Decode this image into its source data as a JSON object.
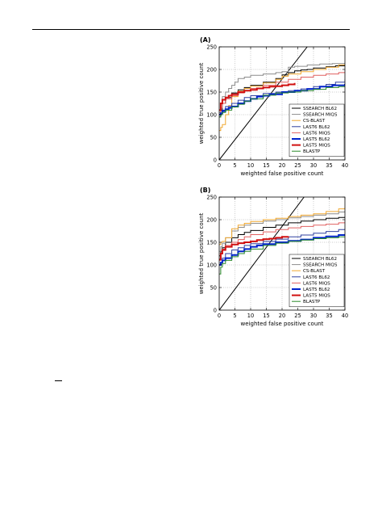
{
  "page": {
    "footnote_mark": "—"
  },
  "chart_data": [
    {
      "type": "line",
      "panel_label": "(A)",
      "xlabel": "weighted false positive count",
      "ylabel": "weighted true positive count",
      "xlim": [
        0,
        40
      ],
      "ylim": [
        0,
        250
      ],
      "xticks": [
        0,
        5,
        10,
        15,
        20,
        25,
        30,
        35,
        40
      ],
      "yticks": [
        0,
        50,
        100,
        150,
        200,
        250
      ],
      "grid": true,
      "legend_position": "lower-right",
      "reference_line": {
        "x": [
          0,
          28
        ],
        "y": [
          0,
          250
        ],
        "color": "#000000"
      },
      "series": [
        {
          "name": "SSEARCH BL62",
          "color": "#000000",
          "width": 1.0,
          "x": [
            0,
            0.5,
            1,
            2,
            4,
            6,
            8,
            10,
            14,
            18,
            20,
            22,
            24,
            26,
            28,
            30,
            34,
            37,
            40
          ],
          "y": [
            95,
            110,
            125,
            138,
            148,
            155,
            160,
            165,
            172,
            180,
            188,
            193,
            197,
            199,
            200,
            203,
            206,
            208,
            210
          ]
        },
        {
          "name": "SSEARCH MIQS",
          "color": "#8c8c8c",
          "width": 1.0,
          "x": [
            0,
            0.5,
            1,
            2,
            3,
            4,
            5,
            6,
            8,
            10,
            14,
            18,
            20,
            22,
            24,
            28,
            32,
            36,
            40
          ],
          "y": [
            105,
            125,
            140,
            150,
            158,
            165,
            172,
            180,
            183,
            187,
            190,
            193,
            195,
            205,
            207,
            210,
            212,
            213,
            215
          ]
        },
        {
          "name": "CS-BLAST",
          "color": "#f0a830",
          "width": 1.0,
          "x": [
            0,
            0.5,
            1,
            2,
            3,
            4,
            6,
            8,
            10,
            14,
            18,
            20,
            22,
            26,
            30,
            34,
            38,
            40
          ],
          "y": [
            65,
            72,
            78,
            100,
            120,
            140,
            152,
            158,
            163,
            170,
            178,
            185,
            190,
            195,
            200,
            205,
            210,
            212
          ]
        },
        {
          "name": "LAST6 BL62",
          "color": "#3040a0",
          "width": 1.0,
          "x": [
            0,
            1,
            2,
            4,
            6,
            8,
            10,
            14,
            18,
            22,
            26,
            30,
            34,
            37,
            40
          ],
          "y": [
            100,
            110,
            118,
            125,
            132,
            138,
            142,
            147,
            150,
            153,
            157,
            162,
            167,
            172,
            178
          ]
        },
        {
          "name": "LAST6 MIQS",
          "color": "#e06060",
          "width": 1.0,
          "x": [
            0,
            0.5,
            1,
            2,
            4,
            6,
            8,
            10,
            14,
            18,
            22,
            26,
            30,
            34,
            38,
            40
          ],
          "y": [
            100,
            115,
            125,
            135,
            142,
            148,
            153,
            158,
            165,
            172,
            178,
            183,
            187,
            190,
            193,
            195
          ]
        },
        {
          "name": "LAST5 BL62",
          "color": "#0022cc",
          "width": 2.0,
          "x": [
            0,
            0.5,
            1,
            2,
            3,
            4,
            6,
            8,
            10,
            12,
            14,
            16,
            20,
            24,
            28,
            32,
            36,
            40
          ],
          "y": [
            100,
            103,
            108,
            112,
            115,
            118,
            125,
            130,
            135,
            140,
            142,
            145,
            150,
            153,
            157,
            162,
            165,
            168
          ]
        },
        {
          "name": "LAST5 MIQS",
          "color": "#d01010",
          "width": 2.0,
          "x": [
            0,
            0.5,
            1,
            2,
            3,
            4,
            6,
            8,
            10,
            12,
            14,
            16,
            18,
            20,
            22,
            24
          ],
          "y": [
            110,
            125,
            133,
            138,
            142,
            145,
            150,
            153,
            155,
            158,
            160,
            162,
            163,
            165,
            167,
            170
          ]
        },
        {
          "name": "BLASTP",
          "color": "#2a8a2a",
          "width": 1.0,
          "x": [
            0,
            0.5,
            1,
            2,
            4,
            6,
            8,
            10,
            14,
            18,
            22,
            26,
            30,
            34,
            38,
            40
          ],
          "y": [
            95,
            100,
            105,
            110,
            117,
            123,
            130,
            135,
            143,
            148,
            150,
            153,
            156,
            160,
            162,
            165
          ]
        }
      ]
    },
    {
      "type": "line",
      "panel_label": "(B)",
      "xlabel": "weighted false positive count",
      "ylabel": "weighted true positive count",
      "xlim": [
        0,
        40
      ],
      "ylim": [
        0,
        250
      ],
      "xticks": [
        0,
        5,
        10,
        15,
        20,
        25,
        30,
        35,
        40
      ],
      "yticks": [
        0,
        50,
        100,
        150,
        200,
        250
      ],
      "grid": true,
      "reference_line": {
        "x": [
          0,
          27
        ],
        "y": [
          0,
          250
        ],
        "color": "#000000"
      },
      "series": [
        {
          "name": "SSEARCH BL62",
          "color": "#000000",
          "width": 1.0,
          "x": [
            0,
            0.5,
            1,
            2,
            4,
            6,
            8,
            10,
            14,
            18,
            22,
            26,
            30,
            34,
            38,
            40
          ],
          "y": [
            120,
            130,
            138,
            150,
            160,
            167,
            172,
            176,
            183,
            188,
            193,
            197,
            200,
            203,
            205,
            207
          ]
        },
        {
          "name": "SSEARCH MIQS",
          "color": "#8c8c8c",
          "width": 1.0,
          "x": [
            0,
            0.5,
            1,
            2,
            4,
            6,
            8,
            10,
            14,
            18,
            22,
            26,
            30,
            34,
            38,
            40
          ],
          "y": [
            130,
            140,
            148,
            160,
            175,
            183,
            188,
            192,
            197,
            200,
            204,
            207,
            210,
            213,
            217,
            220
          ]
        },
        {
          "name": "CS-BLAST",
          "color": "#f0a830",
          "width": 1.0,
          "x": [
            0,
            0.5,
            1,
            2,
            4,
            6,
            8,
            10,
            14,
            18,
            22,
            26,
            30,
            34,
            38,
            40
          ],
          "y": [
            145,
            150,
            152,
            160,
            180,
            188,
            192,
            196,
            200,
            203,
            207,
            210,
            213,
            218,
            224,
            228
          ]
        },
        {
          "name": "LAST6 BL62",
          "color": "#3040a0",
          "width": 1.0,
          "x": [
            0,
            1,
            2,
            4,
            6,
            8,
            10,
            14,
            18,
            22,
            26,
            30,
            34,
            38,
            40
          ],
          "y": [
            100,
            115,
            125,
            133,
            138,
            143,
            147,
            152,
            157,
            162,
            166,
            170,
            174,
            178,
            180
          ]
        },
        {
          "name": "LAST6 MIQS",
          "color": "#e06060",
          "width": 1.0,
          "x": [
            0,
            0.5,
            1,
            2,
            4,
            6,
            8,
            10,
            14,
            18,
            22,
            26,
            30,
            34,
            38,
            40
          ],
          "y": [
            110,
            125,
            135,
            143,
            150,
            156,
            162,
            167,
            173,
            178,
            182,
            185,
            188,
            190,
            193,
            195
          ]
        },
        {
          "name": "LAST5 BL62",
          "color": "#0022cc",
          "width": 2.0,
          "x": [
            0,
            0.5,
            1,
            2,
            4,
            6,
            8,
            10,
            12,
            14,
            18,
            22,
            26,
            30,
            34,
            38,
            40
          ],
          "y": [
            100,
            105,
            110,
            115,
            122,
            130,
            135,
            140,
            143,
            146,
            150,
            153,
            156,
            160,
            163,
            166,
            168
          ]
        },
        {
          "name": "LAST5 MIQS",
          "color": "#d01010",
          "width": 2.0,
          "x": [
            0,
            0.5,
            1,
            2,
            4,
            6,
            8,
            10,
            12,
            14,
            16,
            18,
            20,
            22
          ],
          "y": [
            112,
            125,
            133,
            140,
            145,
            148,
            150,
            152,
            155,
            157,
            158,
            160,
            162,
            163
          ]
        },
        {
          "name": "BLASTP",
          "color": "#2a8a2a",
          "width": 1.0,
          "x": [
            0,
            0.5,
            1,
            2,
            4,
            6,
            8,
            10,
            14,
            18,
            22,
            26,
            30,
            34,
            38,
            40
          ],
          "y": [
            80,
            95,
            103,
            110,
            118,
            125,
            130,
            135,
            143,
            148,
            152,
            155,
            158,
            160,
            162,
            163
          ]
        }
      ]
    }
  ]
}
